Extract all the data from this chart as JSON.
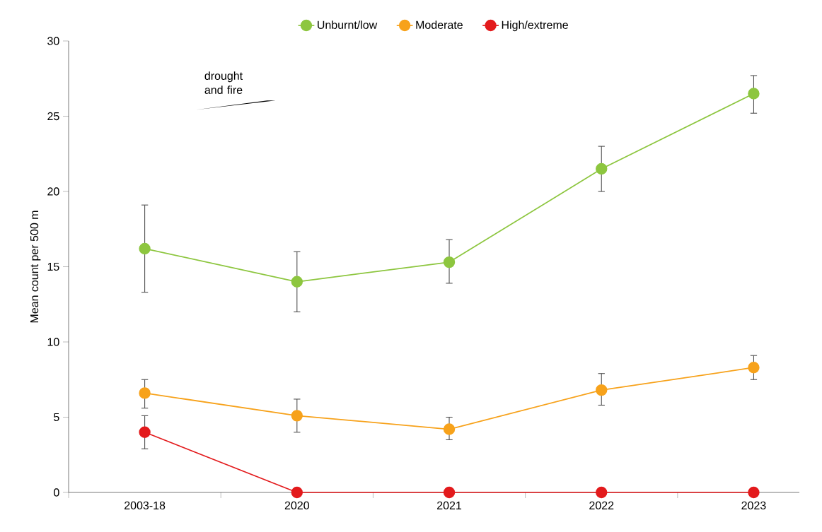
{
  "chart_data": {
    "type": "line",
    "ylabel": "Mean count per 500 m",
    "categories": [
      "2003-18",
      "2020",
      "2021",
      "2022",
      "2023"
    ],
    "series": [
      {
        "name": "Unburnt/low",
        "color": "#8dc63f",
        "values": [
          16.2,
          14.0,
          15.3,
          21.5,
          26.5
        ],
        "errors": [
          [
            13.3,
            19.1
          ],
          [
            12.0,
            16.0
          ],
          [
            13.9,
            16.8
          ],
          [
            20.0,
            23.0
          ],
          [
            25.2,
            27.7
          ]
        ]
      },
      {
        "name": "Moderate",
        "color": "#f7a21b",
        "values": [
          6.6,
          5.1,
          4.2,
          6.8,
          8.3
        ],
        "errors": [
          [
            5.6,
            7.5
          ],
          [
            4.0,
            6.2
          ],
          [
            3.5,
            5.0
          ],
          [
            5.8,
            7.9
          ],
          [
            7.5,
            9.1
          ]
        ]
      },
      {
        "name": "High/extreme",
        "color": "#e31a1c",
        "values": [
          4.0,
          0,
          0,
          0,
          0
        ],
        "errors": [
          [
            2.9,
            5.1
          ],
          null,
          null,
          null,
          null
        ]
      }
    ],
    "ylim": [
      0,
      30
    ],
    "yticks": [
      0,
      5,
      10,
      15,
      20,
      25,
      30
    ],
    "legend": "top",
    "marker": "circle",
    "annotations": [
      "drought and fire"
    ]
  }
}
